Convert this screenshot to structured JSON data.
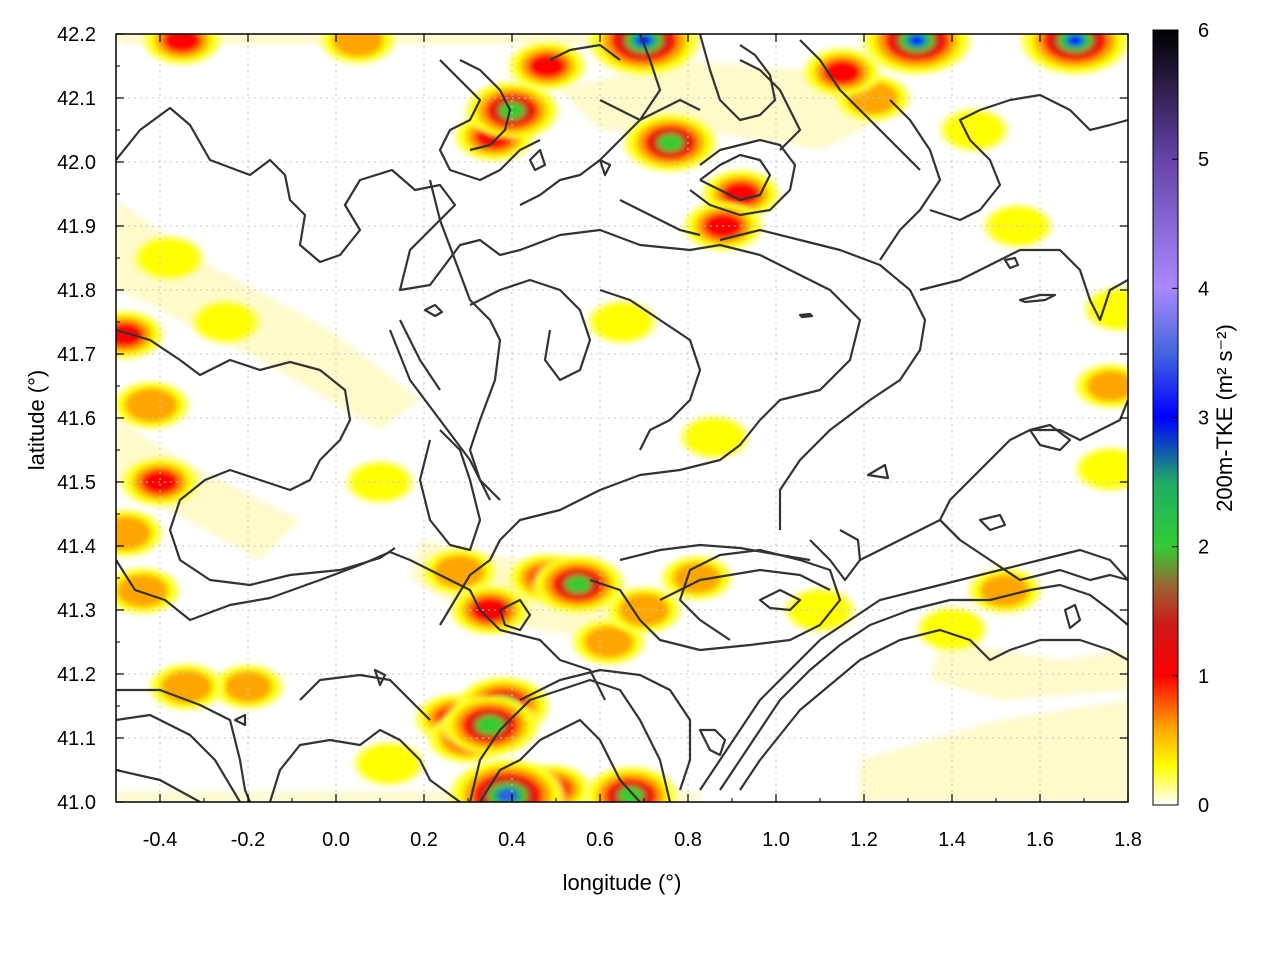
{
  "chart_data": {
    "type": "heatmap",
    "title": "",
    "xlabel": "longitude (°)",
    "ylabel": "latitude (°)",
    "colorbar_label": "200m-TKE (m² s⁻²)",
    "xlim": [
      -0.5,
      1.8
    ],
    "ylim": [
      41.0,
      42.2
    ],
    "x_ticks": [
      {
        "value": -0.4,
        "label": "-0.4"
      },
      {
        "value": -0.2,
        "label": "-0.2"
      },
      {
        "value": 0.0,
        "label": "0.0"
      },
      {
        "value": 0.2,
        "label": "0.2"
      },
      {
        "value": 0.4,
        "label": "0.4"
      },
      {
        "value": 0.6,
        "label": "0.6"
      },
      {
        "value": 0.8,
        "label": "0.8"
      },
      {
        "value": 1.0,
        "label": "1.0"
      },
      {
        "value": 1.2,
        "label": "1.2"
      },
      {
        "value": 1.4,
        "label": "1.4"
      },
      {
        "value": 1.6,
        "label": "1.6"
      },
      {
        "value": 1.8,
        "label": "1.8"
      }
    ],
    "y_ticks": [
      {
        "value": 41.0,
        "label": "41.0"
      },
      {
        "value": 41.1,
        "label": "41.1"
      },
      {
        "value": 41.2,
        "label": "41.2"
      },
      {
        "value": 41.3,
        "label": "41.3"
      },
      {
        "value": 41.4,
        "label": "41.4"
      },
      {
        "value": 41.5,
        "label": "41.5"
      },
      {
        "value": 41.6,
        "label": "41.6"
      },
      {
        "value": 41.7,
        "label": "41.7"
      },
      {
        "value": 41.8,
        "label": "41.8"
      },
      {
        "value": 41.9,
        "label": "41.9"
      },
      {
        "value": 42.0,
        "label": "42.0"
      },
      {
        "value": 42.1,
        "label": "42.1"
      },
      {
        "value": 42.2,
        "label": "42.2"
      }
    ],
    "colorbar": {
      "range": [
        0,
        6
      ],
      "ticks": [
        {
          "value": 0,
          "label": "0"
        },
        {
          "value": 1,
          "label": "1"
        },
        {
          "value": 2,
          "label": "2"
        },
        {
          "value": 3,
          "label": "3"
        },
        {
          "value": 4,
          "label": "4"
        },
        {
          "value": 5,
          "label": "5"
        },
        {
          "value": 6,
          "label": "6"
        }
      ],
      "stops": [
        {
          "value": 0.0,
          "color": "#ffffff"
        },
        {
          "value": 0.3,
          "color": "#ffff00"
        },
        {
          "value": 0.6,
          "color": "#ffa500"
        },
        {
          "value": 1.0,
          "color": "#ff0000"
        },
        {
          "value": 1.4,
          "color": "#cc1a1a"
        },
        {
          "value": 1.7,
          "color": "#996633"
        },
        {
          "value": 2.0,
          "color": "#33cc33"
        },
        {
          "value": 2.5,
          "color": "#22aa66"
        },
        {
          "value": 3.0,
          "color": "#0000ff"
        },
        {
          "value": 3.5,
          "color": "#4466dd"
        },
        {
          "value": 4.0,
          "color": "#aa88ff"
        },
        {
          "value": 5.0,
          "color": "#6644aa"
        },
        {
          "value": 6.0,
          "color": "#000000"
        }
      ]
    },
    "grid": true,
    "contour_color": "#333333",
    "tke_hotspots": [
      {
        "x": 0.35,
        "y": 41.12,
        "tke": 2.3
      },
      {
        "x": 0.38,
        "y": 41.15,
        "tke": 2.0
      },
      {
        "x": 0.3,
        "y": 41.1,
        "tke": 1.2
      },
      {
        "x": 0.27,
        "y": 41.13,
        "tke": 1.1
      },
      {
        "x": 0.55,
        "y": 41.34,
        "tke": 2.0
      },
      {
        "x": 0.48,
        "y": 41.35,
        "tke": 1.0
      },
      {
        "x": 0.35,
        "y": 41.3,
        "tke": 1.1
      },
      {
        "x": 0.28,
        "y": 41.36,
        "tke": 0.8
      },
      {
        "x": 0.39,
        "y": 41.01,
        "tke": 3.5
      },
      {
        "x": 0.49,
        "y": 41.02,
        "tke": 1.1
      },
      {
        "x": 0.67,
        "y": 41.01,
        "tke": 2.0
      },
      {
        "x": 0.4,
        "y": 42.08,
        "tke": 2.0
      },
      {
        "x": 0.36,
        "y": 42.04,
        "tke": 1.1
      },
      {
        "x": 0.76,
        "y": 42.03,
        "tke": 2.0
      },
      {
        "x": 0.7,
        "y": 42.19,
        "tke": 3.2
      },
      {
        "x": 0.88,
        "y": 41.9,
        "tke": 1.1
      },
      {
        "x": 0.92,
        "y": 41.95,
        "tke": 1.0
      },
      {
        "x": 1.15,
        "y": 42.14,
        "tke": 1.0
      },
      {
        "x": 1.22,
        "y": 42.1,
        "tke": 0.8
      },
      {
        "x": 1.32,
        "y": 42.19,
        "tke": 3.0
      },
      {
        "x": 1.68,
        "y": 42.19,
        "tke": 3.0
      },
      {
        "x": 0.48,
        "y": 42.15,
        "tke": 1.0
      },
      {
        "x": 0.05,
        "y": 42.19,
        "tke": 0.8
      },
      {
        "x": -0.35,
        "y": 42.19,
        "tke": 1.0
      },
      {
        "x": -0.48,
        "y": 41.73,
        "tke": 1.0
      },
      {
        "x": -0.42,
        "y": 41.62,
        "tke": 0.9
      },
      {
        "x": -0.4,
        "y": 41.5,
        "tke": 1.0
      },
      {
        "x": -0.48,
        "y": 41.42,
        "tke": 0.9
      },
      {
        "x": -0.44,
        "y": 41.33,
        "tke": 0.8
      },
      {
        "x": -0.34,
        "y": 41.18,
        "tke": 0.8
      },
      {
        "x": -0.2,
        "y": 41.18,
        "tke": 0.6
      },
      {
        "x": -0.38,
        "y": 41.85,
        "tke": 0.5
      },
      {
        "x": -0.25,
        "y": 41.75,
        "tke": 0.4
      },
      {
        "x": 1.52,
        "y": 41.33,
        "tke": 0.7
      },
      {
        "x": 1.4,
        "y": 41.27,
        "tke": 0.5
      },
      {
        "x": 1.76,
        "y": 41.65,
        "tke": 0.6
      },
      {
        "x": 1.76,
        "y": 41.52,
        "tke": 0.5
      },
      {
        "x": 1.78,
        "y": 41.77,
        "tke": 0.5
      },
      {
        "x": 0.7,
        "y": 41.3,
        "tke": 0.8
      },
      {
        "x": 0.82,
        "y": 41.35,
        "tke": 0.6
      },
      {
        "x": 1.1,
        "y": 41.3,
        "tke": 0.5
      },
      {
        "x": 0.62,
        "y": 41.25,
        "tke": 0.7
      },
      {
        "x": 0.12,
        "y": 41.06,
        "tke": 0.5
      },
      {
        "x": 0.86,
        "y": 41.57,
        "tke": 0.4
      },
      {
        "x": 0.65,
        "y": 41.75,
        "tke": 0.4
      },
      {
        "x": 1.45,
        "y": 42.05,
        "tke": 0.4
      },
      {
        "x": 1.55,
        "y": 41.9,
        "tke": 0.4
      },
      {
        "x": 0.1,
        "y": 41.5,
        "tke": 0.35
      }
    ]
  }
}
